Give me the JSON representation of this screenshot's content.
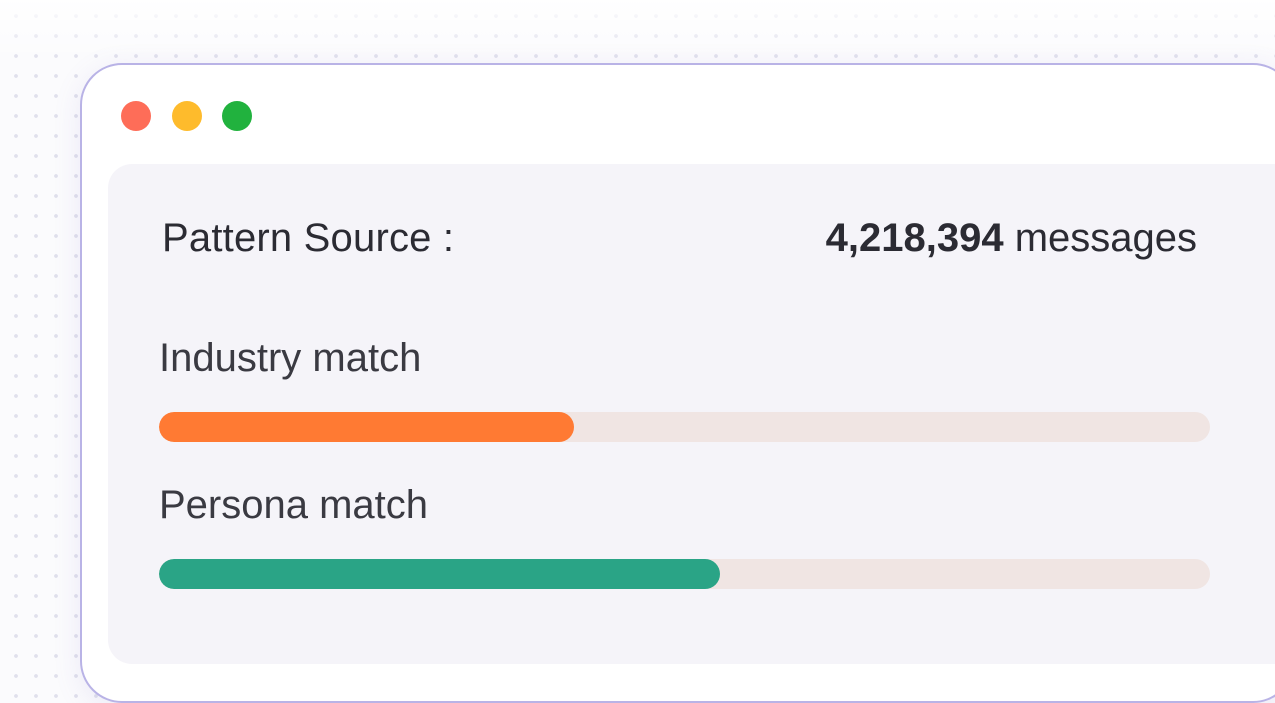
{
  "window": {
    "controls": [
      "close-icon",
      "minimize-icon",
      "maximize-icon"
    ],
    "control_colors": {
      "close": "#fe6d58",
      "minimize": "#febb2c",
      "maximize": "#21b23e"
    }
  },
  "pattern_source": {
    "label": "Pattern Source :",
    "count": "4,218,394",
    "unit": "messages"
  },
  "metrics": [
    {
      "label": "Industry match",
      "fill_percent": 39.5,
      "color": "#ff7a33"
    },
    {
      "label": "Persona match",
      "fill_percent": 53.4,
      "color": "#2aa486"
    }
  ],
  "track_color": "#f0e5e3"
}
